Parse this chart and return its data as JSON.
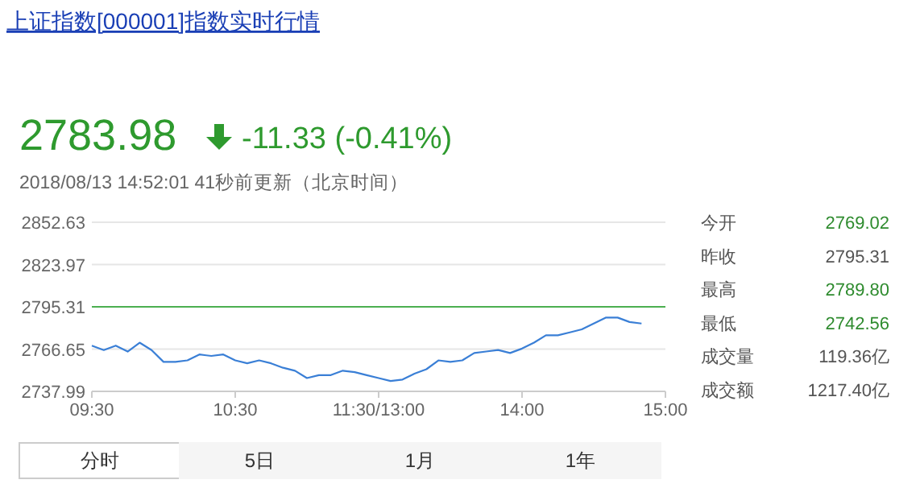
{
  "chart_data": {
    "type": "line",
    "title": "上证指数[000001]指数实时行情",
    "annotations": [
      "2783.98",
      "-11.33 (-0.41%)",
      "2018/08/13 14:52:01  41秒前更新（北京时间）",
      "今开",
      "2769.02",
      "昨收",
      "2795.31",
      "最高",
      "2789.80",
      "最低",
      "2742.56",
      "成交量",
      "119.36亿",
      "成交额",
      "1217.40亿",
      "分时",
      "5日",
      "1月",
      "1年"
    ],
    "categories": [
      "09:30",
      null,
      null,
      null,
      null,
      null,
      null,
      null,
      null,
      null,
      null,
      null,
      "10:30",
      null,
      null,
      null,
      null,
      null,
      null,
      null,
      null,
      null,
      null,
      null,
      "11:30/13:00",
      null,
      null,
      null,
      null,
      null,
      null,
      null,
      null,
      null,
      null,
      null,
      "14:00",
      null,
      null,
      null,
      null,
      null,
      null,
      null,
      null,
      null,
      null,
      null,
      "15:00"
    ],
    "series": [
      {
        "color": "#3a7fd6",
        "values": [
          2769,
          2766,
          2769,
          2765,
          2771,
          2766,
          2758,
          2758,
          2759,
          2763,
          2762,
          2763,
          2759,
          2757,
          2759,
          2757,
          2754,
          2752,
          2747,
          2749,
          2749,
          2752,
          2751,
          2749,
          2747,
          2745,
          2746,
          2750,
          2753,
          2759,
          2758,
          2759,
          2764,
          2765,
          2766,
          2764,
          2767,
          2771,
          2776,
          2776,
          2778,
          2780,
          2784,
          2788,
          2788,
          2785,
          2784,
          null,
          null
        ]
      }
    ],
    "ylim": [
      2737.99,
      2852.63
    ],
    "yticks": [
      2737.99,
      2766.65,
      2795.31,
      2823.97,
      2852.63
    ],
    "ref_lines": [
      {
        "axis": "y",
        "value": 2795.31,
        "color": "#4caf50"
      }
    ],
    "grid": "y",
    "marker": "none",
    "line_style": "solid"
  }
}
